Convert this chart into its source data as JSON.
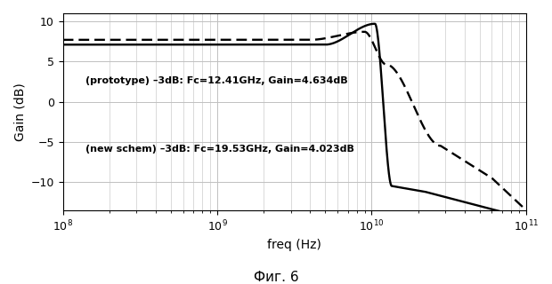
{
  "xlabel": "freq (Hz)",
  "ylabel": "Gain (dB)",
  "caption": "Фиг. 6",
  "annotation1": "(prototype) –3dB: Fc=12.41GHz, Gain=4.634dB",
  "annotation2": "(new schem) –3dB: Fc=19.53GHz, Gain=4.023dB",
  "xlim": [
    100000000.0,
    100000000000.0
  ],
  "ylim": [
    -13.5,
    11
  ],
  "yticks": [
    -10,
    -5,
    0,
    5,
    10
  ],
  "background_color": "#ffffff",
  "grid_color": "#c0c0c0",
  "line_color": "#000000"
}
